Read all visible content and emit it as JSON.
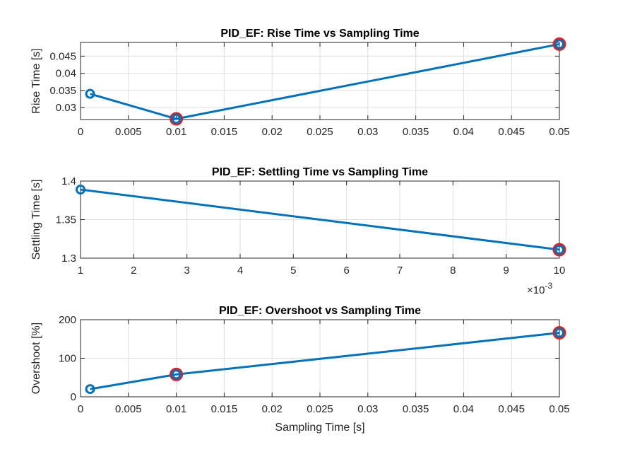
{
  "chart_data": [
    {
      "type": "line",
      "title": "PID_EF: Rise Time vs Sampling Time",
      "xlabel": "",
      "ylabel": "Rise Time [s]",
      "xlim": [
        0,
        0.05
      ],
      "ylim": [
        0.0265,
        0.049
      ],
      "xticks": [
        0,
        0.005,
        0.01,
        0.015,
        0.02,
        0.025,
        0.03,
        0.035,
        0.04,
        0.045,
        0.05
      ],
      "xtick_labels": [
        "0",
        "0.005",
        "0.01",
        "0.015",
        "0.02",
        "0.025",
        "0.03",
        "0.035",
        "0.04",
        "0.045",
        "0.05"
      ],
      "yticks": [
        0.03,
        0.035,
        0.04,
        0.045
      ],
      "ytick_labels": [
        "0.03",
        "0.035",
        "0.04",
        "0.045"
      ],
      "x": [
        0.001,
        0.01,
        0.05
      ],
      "y": [
        0.034,
        0.0267,
        0.0485
      ],
      "highlight": [
        false,
        true,
        true
      ],
      "exponent_label": "",
      "grid": true,
      "color": "#0072BD",
      "highlight_color": "#e02020"
    },
    {
      "type": "line",
      "title": "PID_EF: Settling Time vs Sampling Time",
      "xlabel": "",
      "ylabel": "Settling Time [s]",
      "xlim": [
        1,
        10
      ],
      "ylim": [
        1.3,
        1.4
      ],
      "xticks": [
        1,
        2,
        3,
        4,
        5,
        6,
        7,
        8,
        9,
        10
      ],
      "xtick_labels": [
        "1",
        "2",
        "3",
        "4",
        "5",
        "6",
        "7",
        "8",
        "9",
        "10"
      ],
      "yticks": [
        1.3,
        1.35,
        1.4
      ],
      "ytick_labels": [
        "1.3",
        "1.35",
        "1.4"
      ],
      "x": [
        1,
        10
      ],
      "y": [
        1.389,
        1.311
      ],
      "highlight": [
        false,
        true
      ],
      "exponent_label": "×10",
      "exponent_power": "-3",
      "grid": true,
      "color": "#0072BD",
      "highlight_color": "#e02020"
    },
    {
      "type": "line",
      "title": "PID_EF: Overshoot vs Sampling Time",
      "xlabel": "Sampling Time [s]",
      "ylabel": "Overshoot [%]",
      "xlim": [
        0,
        0.05
      ],
      "ylim": [
        0,
        200
      ],
      "xticks": [
        0,
        0.005,
        0.01,
        0.015,
        0.02,
        0.025,
        0.03,
        0.035,
        0.04,
        0.045,
        0.05
      ],
      "xtick_labels": [
        "0",
        "0.005",
        "0.01",
        "0.015",
        "0.02",
        "0.025",
        "0.03",
        "0.035",
        "0.04",
        "0.045",
        "0.05"
      ],
      "yticks": [
        0,
        100,
        200
      ],
      "ytick_labels": [
        "0",
        "100",
        "200"
      ],
      "x": [
        0.001,
        0.01,
        0.05
      ],
      "y": [
        20,
        58,
        166
      ],
      "highlight": [
        false,
        true,
        true
      ],
      "exponent_label": "",
      "grid": true,
      "color": "#0072BD",
      "highlight_color": "#e02020"
    }
  ]
}
